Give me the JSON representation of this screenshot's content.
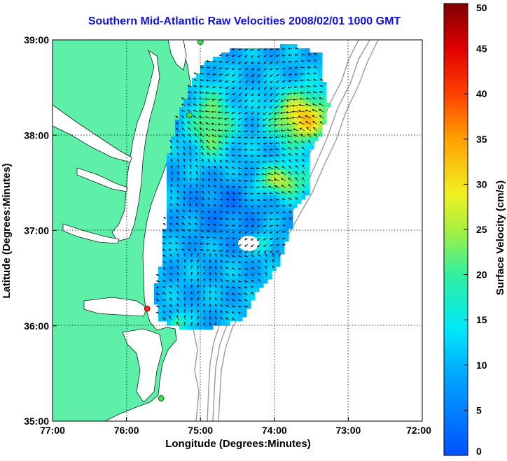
{
  "title": "Southern Mid-Atlantic Raw Velocities 2008/02/01 1000 GMT",
  "x_axis": {
    "label": "Longitude (Degrees:Minutes)",
    "ticks": [
      "77:00",
      "76:00",
      "75:00",
      "74:00",
      "73:00",
      "72:00"
    ]
  },
  "y_axis": {
    "label": "Latitude (Degrees:Minutes)",
    "ticks": [
      "39:00",
      "38:00",
      "37:00",
      "36:00",
      "35:00"
    ]
  },
  "colorbar": {
    "label": "Surface Velocity (cm/s)",
    "min": 0,
    "max": 50,
    "ticks": [
      "50",
      "45",
      "40",
      "35",
      "30",
      "25",
      "20",
      "15",
      "10",
      "5",
      "0"
    ]
  },
  "colors": {
    "land": "#5ef0a8",
    "water": "#ffffff",
    "title": "#1010e6",
    "bathymetry": "#9a9a9a",
    "station_green": "#3ce04a",
    "station_red": "#ff2020"
  },
  "stations": [
    {
      "lon": -75.0,
      "lat": 38.98,
      "status": "green"
    },
    {
      "lon": -75.15,
      "lat": 38.21,
      "status": "green"
    },
    {
      "lon": -75.72,
      "lat": 36.18,
      "status": "red"
    },
    {
      "lon": -75.53,
      "lat": 35.24,
      "status": "green"
    }
  ]
}
